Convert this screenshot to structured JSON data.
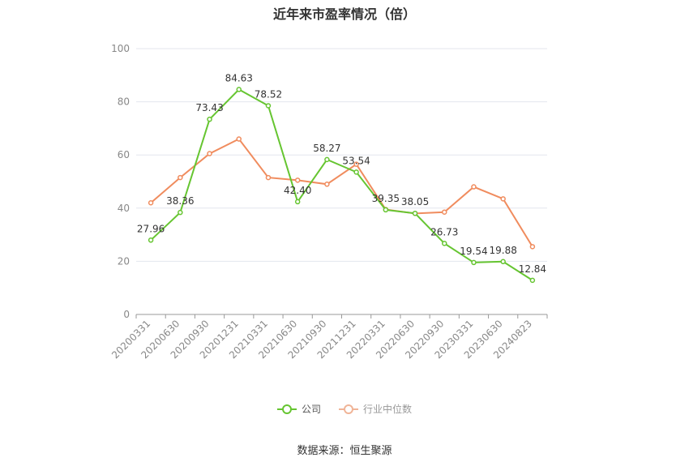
{
  "title": "近年来市盈率情况（倍）",
  "source": "数据来源：恒生聚源",
  "colors": {
    "company": "#66c531",
    "industry": "#f08c5e",
    "grid": "#e3e6ee",
    "axis": "#999999"
  },
  "chart_data": {
    "type": "line",
    "title": "近年来市盈率情况（倍）",
    "categories": [
      "20200331",
      "20200630",
      "20200930",
      "20201231",
      "20210331",
      "20210630",
      "20210930",
      "20211231",
      "20220331",
      "20220630",
      "20220930",
      "20230331",
      "20230630",
      "20240823"
    ],
    "ylim": [
      0,
      100
    ],
    "yticks": [
      0,
      20,
      40,
      60,
      80,
      100
    ],
    "grid": true,
    "legend_position": "bottom",
    "series": [
      {
        "name": "公司",
        "color": "#66c531",
        "show_labels": true,
        "values": [
          27.96,
          38.36,
          73.43,
          84.63,
          78.52,
          42.4,
          58.27,
          53.54,
          39.35,
          38.05,
          26.73,
          19.54,
          19.88,
          12.84
        ],
        "labels": [
          "27.96",
          "38.36",
          "73.43",
          "84.63",
          "78.52",
          "42.40",
          "58.27",
          "53.54",
          "39.35",
          "38.05",
          "26.73",
          "19.54",
          "19.88",
          "12.84"
        ]
      },
      {
        "name": "行业中位数",
        "color": "#f08c5e",
        "show_labels": false,
        "values": [
          42.0,
          51.5,
          60.5,
          66.0,
          51.5,
          50.5,
          49.0,
          56.5,
          39.5,
          38.0,
          38.5,
          48.0,
          43.5,
          25.5
        ]
      }
    ]
  }
}
